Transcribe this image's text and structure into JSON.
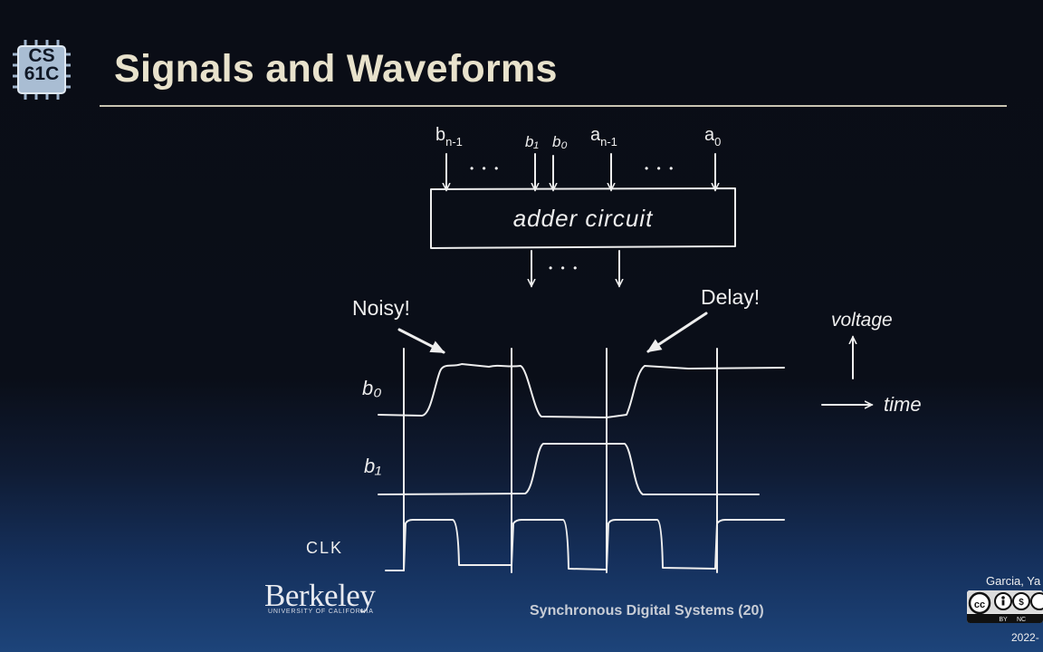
{
  "slide": {
    "title": "Signals and Waveforms",
    "logo_text_line1": "CS",
    "logo_text_line2": "61C",
    "footer_title": "Synchronous Digital Systems (20)",
    "institution": "Berkeley",
    "institution_sub": "UNIVERSITY OF CALIFORNIA",
    "author_partial": "Garcia, Ya",
    "date_partial": "2022-",
    "license_icon": "cc-by-nc-sa-icon"
  },
  "diagram": {
    "inputs": {
      "bn1": "b",
      "bn1_sub": "n-1",
      "b1": "b₁",
      "b0": "b₀",
      "an1": "a",
      "an1_sub": "n-1",
      "a0": "a",
      "a0_sub": "0",
      "dots_left": "• • •",
      "dots_right": "• • •"
    },
    "box_label": "adder circuit",
    "output_dots": "• • •",
    "annotations": {
      "noisy": "Noisy!",
      "delay": "Delay!"
    },
    "signals": {
      "b0": "b₀",
      "b1": "b₁",
      "clk": "CLK"
    },
    "axes": {
      "voltage": "voltage",
      "time": "time"
    }
  }
}
